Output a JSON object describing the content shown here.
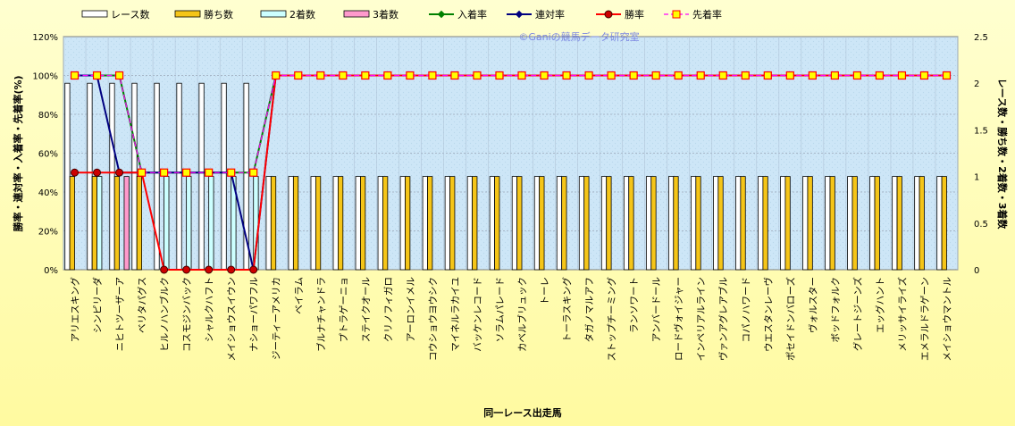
{
  "chart_data": {
    "type": "bar",
    "watermark": "©Ganiの競馬データ研究室",
    "xlabel": "同一レース出走馬",
    "ylabel_left": "勝率・連対率・入着率・先着率(%)",
    "ylabel_right": "レース数・勝ち数・2着数・3着数",
    "ylim_left": [
      0,
      120
    ],
    "yticks_left": [
      "0%",
      "20%",
      "40%",
      "60%",
      "80%",
      "100%",
      "120%"
    ],
    "ylim_right": [
      0,
      2.5
    ],
    "yticks_right": [
      "0",
      "0.5",
      "1",
      "1.5",
      "2",
      "2.5"
    ],
    "grid": true,
    "legend_position": "top",
    "categories": [
      "アリエスキング",
      "シンピリーダ",
      "ニヒトツーザーア",
      "ベリタパグス",
      "ヒルノハンブルク",
      "コスモジンバック",
      "シャルクハフト",
      "メイショウスイウン",
      "ナショーパワフル",
      "ジーティーアメリカ",
      "ベイラム",
      "ブルナチャンドラ",
      "プトラゲーニョ",
      "ステイクオール",
      "クリノフィガロ",
      "アーロンイメル",
      "コウショウヨウシク",
      "マイネルラカイユ",
      "バッケンレコード",
      "ソラムパレード",
      "カベルブリュック",
      "トーレ",
      "トーラスキング",
      "タガノマルアフ",
      "ストップチーミング",
      "ランソワート",
      "アンバードール",
      "ロードヴォイジャー",
      "インペリアルライン",
      "ヴァンアグレアブル",
      "コパノハワード",
      "ウエスタンレーヴ",
      "ポセイドンバローズ",
      "ヴォルスター",
      "ボッドフォルク",
      "グレートジーンズ",
      "エッグハント",
      "メリッサイライズ",
      "エメラルドラゲーン",
      "メイショウマントル"
    ],
    "series": [
      {
        "name": "レース数",
        "axis": "right",
        "color": "#ffffff",
        "values": [
          2,
          2,
          2,
          2,
          2,
          2,
          2,
          2,
          2,
          1,
          1,
          1,
          1,
          1,
          1,
          1,
          1,
          1,
          1,
          1,
          1,
          1,
          1,
          1,
          1,
          1,
          1,
          1,
          1,
          1,
          1,
          1,
          1,
          1,
          1,
          1,
          1,
          1,
          1,
          1
        ]
      },
      {
        "name": "勝ち数",
        "axis": "right",
        "color": "#f5c518",
        "values": [
          1,
          1,
          1,
          1,
          0,
          0,
          0,
          0,
          0,
          1,
          1,
          1,
          1,
          1,
          1,
          1,
          1,
          1,
          1,
          1,
          1,
          1,
          1,
          1,
          1,
          1,
          1,
          1,
          1,
          1,
          1,
          1,
          1,
          1,
          1,
          1,
          1,
          1,
          1,
          1
        ]
      },
      {
        "name": "2着数",
        "axis": "right",
        "color": "#ccffff",
        "values": [
          0,
          1,
          0,
          0,
          1,
          1,
          1,
          1,
          1,
          0,
          0,
          0,
          0,
          0,
          0,
          0,
          0,
          0,
          0,
          0,
          0,
          0,
          0,
          0,
          0,
          0,
          0,
          0,
          0,
          0,
          0,
          0,
          0,
          0,
          0,
          0,
          0,
          0,
          0,
          0
        ]
      },
      {
        "name": "3着数",
        "axis": "right",
        "color": "#ff99cc",
        "values": [
          0,
          0,
          1,
          0,
          0,
          0,
          0,
          0,
          0,
          0,
          0,
          0,
          0,
          0,
          0,
          0,
          0,
          0,
          0,
          0,
          0,
          0,
          0,
          0,
          0,
          0,
          0,
          0,
          0,
          0,
          0,
          0,
          0,
          0,
          0,
          0,
          0,
          0,
          0,
          0
        ]
      },
      {
        "name": "入着率",
        "axis": "left",
        "color": "#008000",
        "values": [
          100,
          100,
          100,
          50,
          50,
          50,
          50,
          50,
          50,
          100,
          100,
          100,
          100,
          100,
          100,
          100,
          100,
          100,
          100,
          100,
          100,
          100,
          100,
          100,
          100,
          100,
          100,
          100,
          100,
          100,
          100,
          100,
          100,
          100,
          100,
          100,
          100,
          100,
          100,
          100
        ]
      },
      {
        "name": "連対率",
        "axis": "left",
        "color": "#000080",
        "values": [
          100,
          100,
          50,
          50,
          50,
          50,
          50,
          50,
          0,
          100,
          100,
          100,
          100,
          100,
          100,
          100,
          100,
          100,
          100,
          100,
          100,
          100,
          100,
          100,
          100,
          100,
          100,
          100,
          100,
          100,
          100,
          100,
          100,
          100,
          100,
          100,
          100,
          100,
          100,
          100
        ]
      },
      {
        "name": "勝率",
        "axis": "left",
        "color": "#ff0000",
        "values": [
          50,
          50,
          50,
          50,
          0,
          0,
          0,
          0,
          0,
          100,
          100,
          100,
          100,
          100,
          100,
          100,
          100,
          100,
          100,
          100,
          100,
          100,
          100,
          100,
          100,
          100,
          100,
          100,
          100,
          100,
          100,
          100,
          100,
          100,
          100,
          100,
          100,
          100,
          100,
          100
        ]
      },
      {
        "name": "先着率",
        "axis": "left",
        "color": "#ff00ff",
        "values": [
          100,
          100,
          100,
          50,
          50,
          50,
          50,
          50,
          50,
          100,
          100,
          100,
          100,
          100,
          100,
          100,
          100,
          100,
          100,
          100,
          100,
          100,
          100,
          100,
          100,
          100,
          100,
          100,
          100,
          100,
          100,
          100,
          100,
          100,
          100,
          100,
          100,
          100,
          100,
          100
        ]
      }
    ]
  }
}
